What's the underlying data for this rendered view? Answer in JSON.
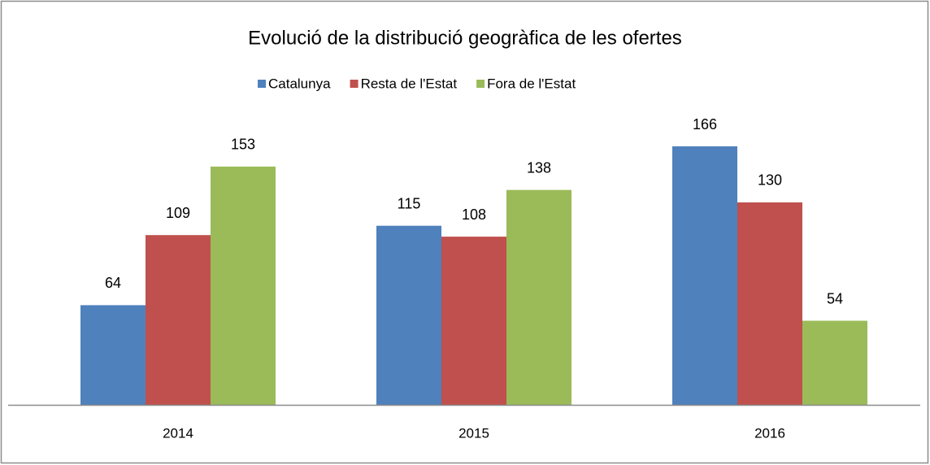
{
  "chart_data": {
    "type": "bar",
    "title": "Evolució de la distribució geogràfica de les ofertes",
    "categories": [
      "2014",
      "2015",
      "2016"
    ],
    "series": [
      {
        "name": "Catalunya",
        "color": "#4f81bd",
        "values": [
          64,
          115,
          166
        ]
      },
      {
        "name": "Resta de l'Estat",
        "color": "#c0504d",
        "values": [
          109,
          108,
          130
        ]
      },
      {
        "name": "Fora de l'Estat",
        "color": "#9bbb59",
        "values": [
          153,
          138,
          54
        ]
      }
    ],
    "legend": "top"
  }
}
